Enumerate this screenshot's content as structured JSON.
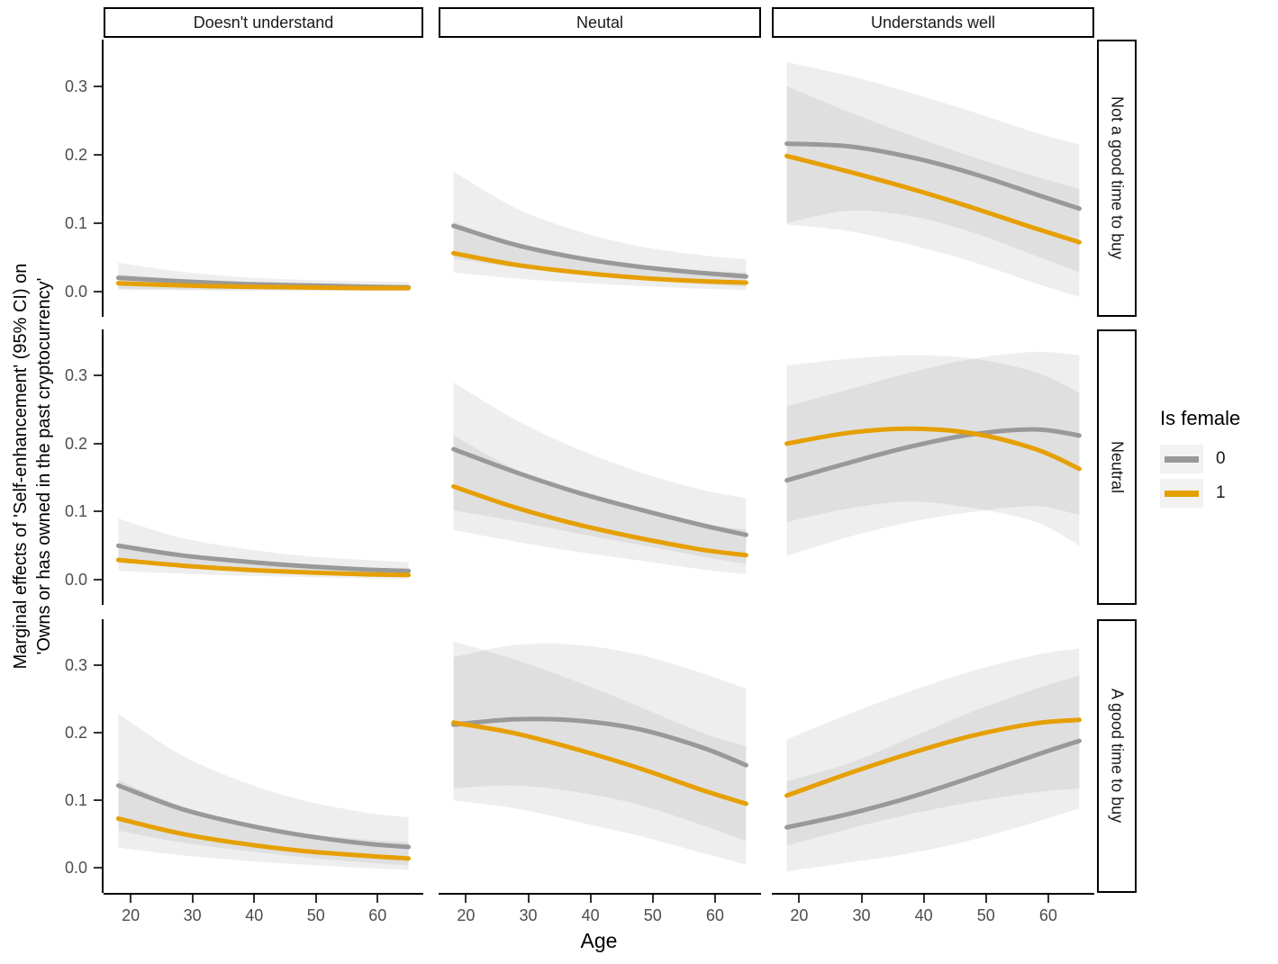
{
  "figure": {
    "x_label": "Age",
    "y_label_line1": "Marginal effects of 'Self-enhancement' (95% CI) on",
    "y_label_line2": "'Owns or has owned in the past cryptocurrency'"
  },
  "facets": {
    "columns": [
      "Doesn't understand",
      "Neutal",
      "Understands well"
    ],
    "rows": [
      "Not a good time to buy",
      "Neutral",
      "A good time to buy"
    ]
  },
  "legend": {
    "title": "Is female",
    "items": [
      {
        "label": "0",
        "color": "#999999"
      },
      {
        "label": "1",
        "color": "#E69F00"
      }
    ]
  },
  "colors": {
    "female_0": "#999999",
    "female_1": "#E69F00",
    "ribbon": "#7f7f7f",
    "ribbon_opacity": 0.13,
    "tick_text": "#4d4d4d",
    "axis": "#000000"
  },
  "axes": {
    "x": {
      "label": "Age",
      "ticks": [
        20,
        30,
        40,
        50,
        60
      ],
      "range": [
        18,
        65
      ]
    },
    "y": {
      "ticks": [
        0.0,
        0.1,
        0.2,
        0.3
      ],
      "tick_labels": [
        "0.0",
        "0.1",
        "0.2",
        "0.3"
      ],
      "range_displayed": [
        -0.037,
        0.368
      ]
    }
  },
  "chart_data": {
    "type": "line",
    "title": "",
    "xlabel": "Age",
    "ylabel": "Marginal effects of 'Self-enhancement' (95% CI) on 'Owns or has owned in the past cryptocurrency'",
    "legend_title": "Is female",
    "legend_position": "right",
    "grid": false,
    "x": [
      18,
      28,
      38,
      48,
      58,
      65
    ],
    "panels": [
      {
        "row": "Not a good time to buy",
        "col": "Doesn't understand",
        "series": [
          {
            "name": "0",
            "y": [
              0.02,
              0.015,
              0.011,
              0.009,
              0.007,
              0.006
            ],
            "ci_lo": [
              0.004,
              0.003,
              0.003,
              0.002,
              0.002,
              0.001
            ],
            "ci_hi": [
              0.042,
              0.029,
              0.021,
              0.017,
              0.015,
              0.014
            ]
          },
          {
            "name": "1",
            "y": [
              0.012,
              0.009,
              0.007,
              0.006,
              0.005,
              0.005
            ],
            "ci_lo": [
              0.002,
              0.002,
              0.001,
              0.001,
              0.001,
              0.001
            ],
            "ci_hi": [
              0.025,
              0.018,
              0.013,
              0.011,
              0.01,
              0.009
            ]
          }
        ]
      },
      {
        "row": "Not a good time to buy",
        "col": "Neutal",
        "series": [
          {
            "name": "0",
            "y": [
              0.096,
              0.068,
              0.049,
              0.036,
              0.027,
              0.022
            ],
            "ci_lo": [
              0.048,
              0.035,
              0.025,
              0.017,
              0.011,
              0.007
            ],
            "ci_hi": [
              0.175,
              0.122,
              0.088,
              0.066,
              0.053,
              0.047
            ]
          },
          {
            "name": "1",
            "y": [
              0.056,
              0.039,
              0.028,
              0.02,
              0.015,
              0.013
            ],
            "ci_lo": [
              0.028,
              0.019,
              0.013,
              0.008,
              0.004,
              0.002
            ],
            "ci_hi": [
              0.102,
              0.068,
              0.048,
              0.036,
              0.03,
              0.028
            ]
          }
        ]
      },
      {
        "row": "Not a good time to buy",
        "col": "Understands well",
        "series": [
          {
            "name": "0",
            "y": [
              0.216,
              0.212,
              0.196,
              0.172,
              0.142,
              0.121
            ],
            "ci_lo": [
              0.1,
              0.118,
              0.11,
              0.086,
              0.052,
              0.028
            ],
            "ci_hi": [
              0.335,
              0.315,
              0.29,
              0.262,
              0.232,
              0.215
            ]
          },
          {
            "name": "1",
            "y": [
              0.198,
              0.175,
              0.15,
              0.122,
              0.092,
              0.072
            ],
            "ci_lo": [
              0.098,
              0.088,
              0.068,
              0.043,
              0.012,
              -0.008
            ],
            "ci_hi": [
              0.3,
              0.262,
              0.228,
              0.196,
              0.168,
              0.15
            ]
          }
        ]
      },
      {
        "row": "Neutral",
        "col": "Doesn't understand",
        "series": [
          {
            "name": "0",
            "y": [
              0.05,
              0.036,
              0.027,
              0.02,
              0.015,
              0.013
            ],
            "ci_lo": [
              0.026,
              0.019,
              0.013,
              0.009,
              0.006,
              0.004
            ],
            "ci_hi": [
              0.09,
              0.062,
              0.046,
              0.035,
              0.029,
              0.026
            ]
          },
          {
            "name": "1",
            "y": [
              0.029,
              0.021,
              0.015,
              0.011,
              0.008,
              0.007
            ],
            "ci_lo": [
              0.013,
              0.009,
              0.006,
              0.004,
              0.002,
              0.001
            ],
            "ci_hi": [
              0.054,
              0.038,
              0.027,
              0.021,
              0.017,
              0.015
            ]
          }
        ]
      },
      {
        "row": "Neutral",
        "col": "Neutal",
        "series": [
          {
            "name": "0",
            "y": [
              0.192,
              0.158,
              0.128,
              0.103,
              0.08,
              0.066
            ],
            "ci_lo": [
              0.102,
              0.086,
              0.068,
              0.051,
              0.034,
              0.023
            ],
            "ci_hi": [
              0.29,
              0.235,
              0.192,
              0.158,
              0.132,
              0.12
            ]
          },
          {
            "name": "1",
            "y": [
              0.137,
              0.106,
              0.081,
              0.061,
              0.044,
              0.036
            ],
            "ci_lo": [
              0.073,
              0.056,
              0.041,
              0.028,
              0.015,
              0.008
            ],
            "ci_hi": [
              0.212,
              0.162,
              0.126,
              0.1,
              0.082,
              0.074
            ]
          }
        ]
      },
      {
        "row": "Neutral",
        "col": "Understands well",
        "series": [
          {
            "name": "0",
            "y": [
              0.146,
              0.172,
              0.196,
              0.214,
              0.221,
              0.212
            ],
            "ci_lo": [
              0.035,
              0.063,
              0.085,
              0.1,
              0.108,
              0.095
            ],
            "ci_hi": [
              0.255,
              0.28,
              0.305,
              0.325,
              0.335,
              0.33
            ]
          },
          {
            "name": "1",
            "y": [
              0.2,
              0.216,
              0.222,
              0.215,
              0.192,
              0.163
            ],
            "ci_lo": [
              0.085,
              0.105,
              0.115,
              0.105,
              0.085,
              0.05
            ],
            "ci_hi": [
              0.315,
              0.325,
              0.33,
              0.325,
              0.305,
              0.275
            ]
          }
        ]
      },
      {
        "row": "A good time to buy",
        "col": "Doesn't understand",
        "series": [
          {
            "name": "0",
            "y": [
              0.122,
              0.088,
              0.065,
              0.048,
              0.036,
              0.031
            ],
            "ci_lo": [
              0.055,
              0.038,
              0.026,
              0.016,
              0.008,
              0.004
            ],
            "ci_hi": [
              0.228,
              0.168,
              0.128,
              0.1,
              0.082,
              0.075
            ]
          },
          {
            "name": "1",
            "y": [
              0.073,
              0.051,
              0.036,
              0.025,
              0.018,
              0.014
            ],
            "ci_lo": [
              0.03,
              0.019,
              0.011,
              0.005,
              0.0,
              -0.003
            ],
            "ci_hi": [
              0.13,
              0.092,
              0.067,
              0.051,
              0.042,
              0.038
            ]
          }
        ]
      },
      {
        "row": "A good time to buy",
        "col": "Neutal",
        "series": [
          {
            "name": "0",
            "y": [
              0.212,
              0.22,
              0.218,
              0.205,
              0.178,
              0.152
            ],
            "ci_lo": [
              0.118,
              0.122,
              0.112,
              0.093,
              0.063,
              0.04
            ],
            "ci_hi": [
              0.312,
              0.33,
              0.33,
              0.315,
              0.288,
              0.265
            ]
          },
          {
            "name": "1",
            "y": [
              0.215,
              0.199,
              0.175,
              0.147,
              0.115,
              0.095
            ],
            "ci_lo": [
              0.1,
              0.088,
              0.068,
              0.047,
              0.022,
              0.005
            ],
            "ci_hi": [
              0.335,
              0.308,
              0.275,
              0.238,
              0.2,
              0.18
            ]
          }
        ]
      },
      {
        "row": "A good time to buy",
        "col": "Understands well",
        "series": [
          {
            "name": "0",
            "y": [
              0.06,
              0.08,
              0.105,
              0.135,
              0.167,
              0.188
            ],
            "ci_lo": [
              -0.005,
              0.008,
              0.022,
              0.042,
              0.068,
              0.088
            ],
            "ci_hi": [
              0.128,
              0.155,
              0.193,
              0.232,
              0.265,
              0.285
            ]
          },
          {
            "name": "1",
            "y": [
              0.107,
              0.14,
              0.17,
              0.196,
              0.214,
              0.219
            ],
            "ci_lo": [
              0.033,
              0.058,
              0.08,
              0.098,
              0.112,
              0.118
            ],
            "ci_hi": [
              0.19,
              0.228,
              0.262,
              0.292,
              0.315,
              0.325
            ]
          }
        ]
      }
    ]
  }
}
